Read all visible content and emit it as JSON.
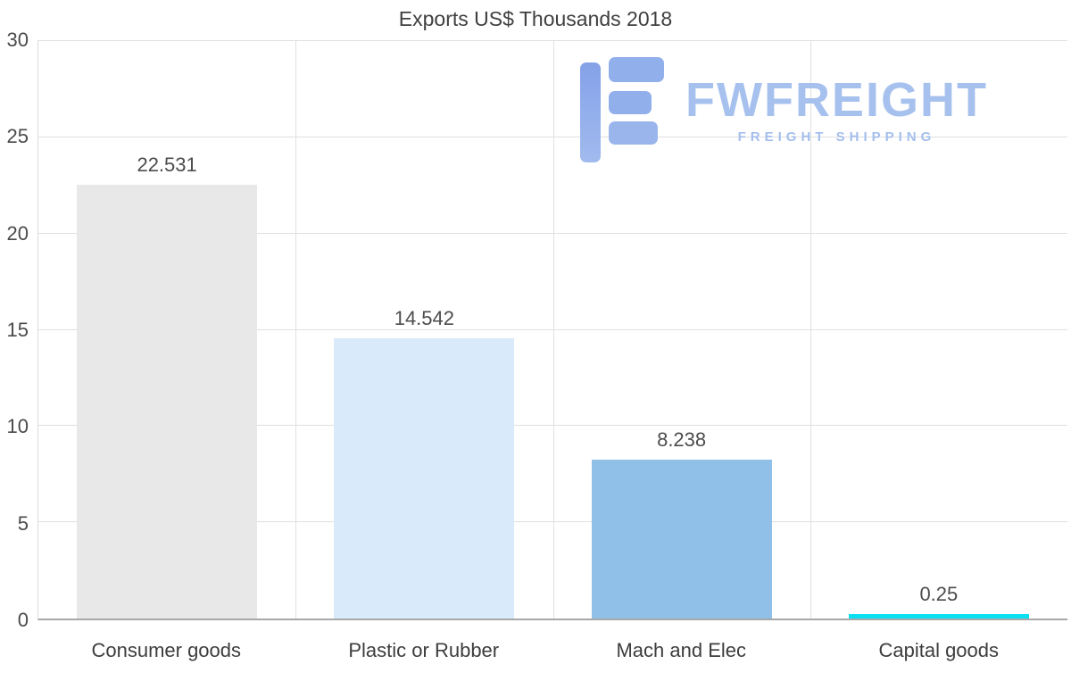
{
  "title": "Exports US$ Thousands 2018",
  "watermark": {
    "brand": "FWFREIGHT",
    "tagline": "FREIGHT SHIPPING",
    "icon": "fwfreight-logo-icon",
    "brand_color": "#a3beee",
    "icon_color": "#86a4e9"
  },
  "colors": {
    "grid": "#e0e0e0",
    "axis": "#a8a8a8",
    "text": "#4a4a4a",
    "background": "#ffffff"
  },
  "chart_data": {
    "type": "bar",
    "title": "Exports US$ Thousands 2018",
    "categories": [
      "Consumer goods",
      "Plastic or Rubber",
      "Mach and Elec",
      "Capital goods"
    ],
    "values": [
      22.531,
      14.542,
      8.238,
      0.25
    ],
    "value_labels": [
      "22.531",
      "14.542",
      "8.238",
      "0.25"
    ],
    "bar_colors": [
      "#e8e8e8",
      "#d9eafb",
      "#90bfe8",
      "#0be0f2"
    ],
    "xlabel": "",
    "ylabel": "",
    "ylim": [
      0,
      30
    ],
    "yticks": [
      0,
      5,
      10,
      15,
      20,
      25,
      30
    ],
    "grid": true,
    "legend": false
  }
}
